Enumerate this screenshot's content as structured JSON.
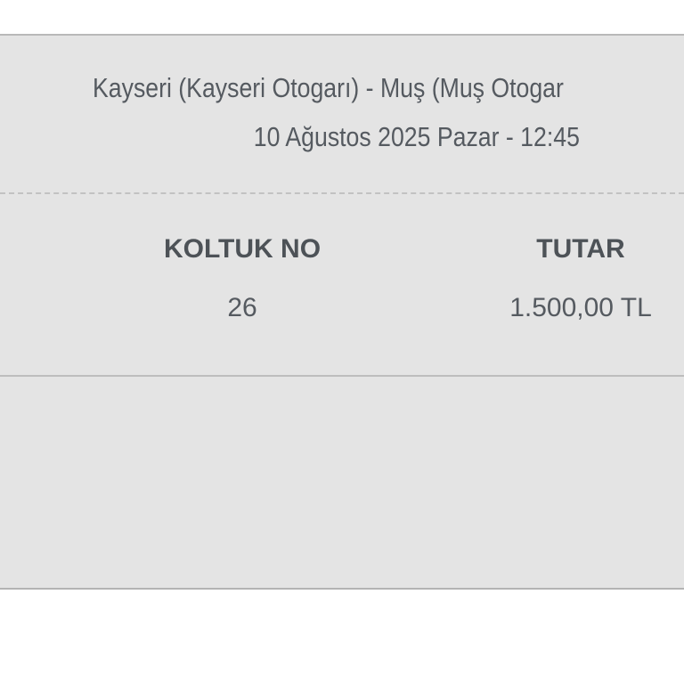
{
  "trip": {
    "route": "Kayseri (Kayseri Otogarı) - Muş (Muş Otogar",
    "datetime": "10 Ağustos 2025 Pazar - 12:45"
  },
  "ticket": {
    "seat_label": "KOLTUK NO",
    "seat_value": "26",
    "price_label": "TUTAR",
    "price_value": "1.500,00 TL"
  },
  "colors": {
    "panel_bg": "#e4e4e4",
    "text": "#555a60"
  }
}
